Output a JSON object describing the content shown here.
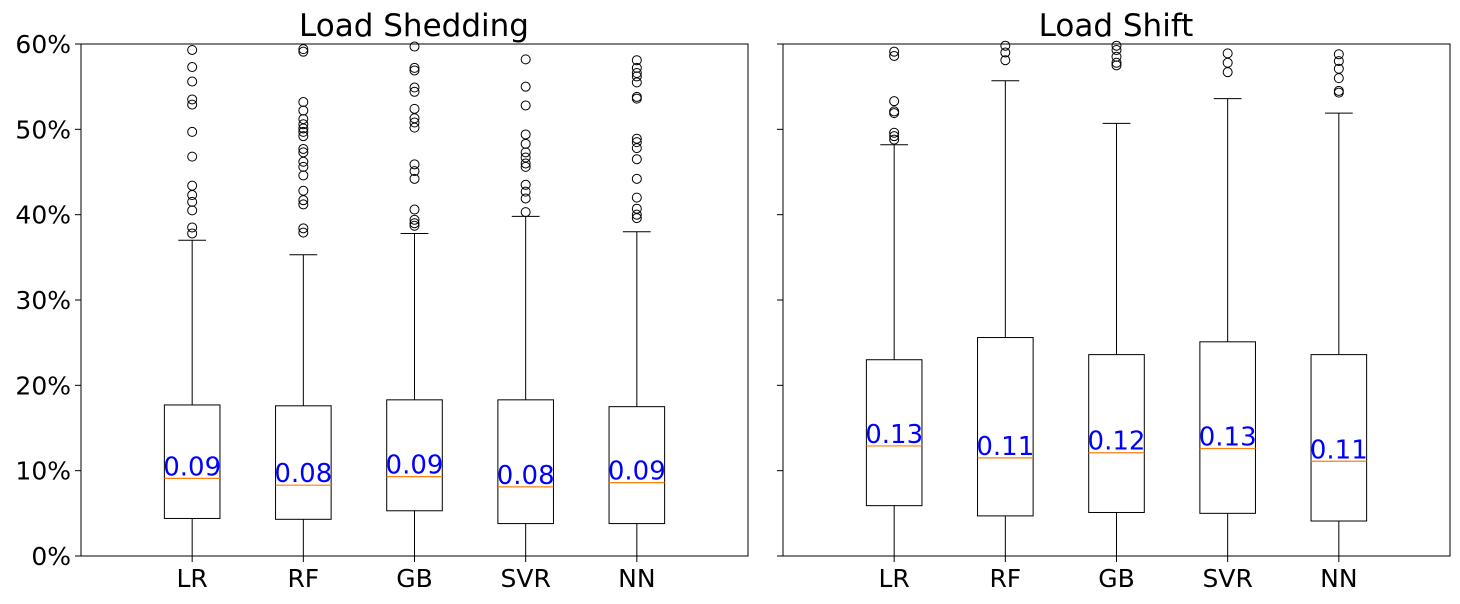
{
  "chart_data": [
    {
      "type": "box",
      "title": "Load Shedding",
      "ylim": [
        0,
        60
      ],
      "yticks": [
        0,
        10,
        20,
        30,
        40,
        50,
        60
      ],
      "ytick_labels": [
        "0%",
        "10%",
        "20%",
        "30%",
        "40%",
        "50%",
        "60%"
      ],
      "categories": [
        "LR",
        "RF",
        "GB",
        "SVR",
        "NN"
      ],
      "boxes": [
        {
          "name": "LR",
          "whisker_low": 0,
          "q1": 4.4,
          "median": 9.1,
          "q3": 17.7,
          "whisker_high": 37.0,
          "median_label": "0.09",
          "outliers": [
            37.8,
            38.5,
            40.5,
            41.5,
            42.3,
            43.4,
            46.8,
            49.7,
            52.9,
            53.5,
            55.6,
            57.3,
            59.3
          ]
        },
        {
          "name": "RF",
          "whisker_low": 0,
          "q1": 4.3,
          "median": 8.3,
          "q3": 17.6,
          "whisker_high": 35.3,
          "median_label": "0.08",
          "outliers": [
            37.9,
            38.4,
            41.2,
            41.7,
            42.8,
            44.6,
            45.6,
            46.2,
            47.3,
            47.7,
            49.2,
            49.7,
            50.1,
            50.6,
            51.2,
            52.2,
            53.2,
            59.1,
            59.4
          ]
        },
        {
          "name": "GB",
          "whisker_low": 0,
          "q1": 5.3,
          "median": 9.3,
          "q3": 18.3,
          "whisker_high": 37.8,
          "median_label": "0.09",
          "outliers": [
            38.7,
            39.0,
            39.4,
            40.6,
            44.2,
            45.1,
            45.9,
            50.2,
            50.8,
            51.3,
            52.4,
            54.4,
            54.9,
            56.9,
            57.2,
            59.7
          ]
        },
        {
          "name": "SVR",
          "whisker_low": 0,
          "q1": 3.8,
          "median": 8.1,
          "q3": 18.3,
          "whisker_high": 39.8,
          "median_label": "0.08",
          "outliers": [
            40.3,
            41.9,
            42.7,
            43.5,
            45.6,
            46.0,
            46.7,
            47.3,
            48.3,
            49.4,
            52.8,
            55.0,
            58.2
          ]
        },
        {
          "name": "NN",
          "whisker_low": 0,
          "q1": 3.8,
          "median": 8.6,
          "q3": 17.5,
          "whisker_high": 38.0,
          "median_label": "0.09",
          "outliers": [
            39.6,
            40.0,
            40.7,
            42.0,
            44.2,
            46.5,
            47.8,
            48.5,
            48.9,
            53.6,
            53.8,
            55.5,
            56.2,
            56.6,
            57.2,
            58.1
          ]
        }
      ]
    },
    {
      "type": "box",
      "title": "Load Shift",
      "ylim": [
        0,
        60
      ],
      "yticks": [
        0,
        10,
        20,
        30,
        40,
        50,
        60
      ],
      "ytick_labels": [],
      "categories": [
        "LR",
        "RF",
        "GB",
        "SVR",
        "NN"
      ],
      "boxes": [
        {
          "name": "LR",
          "whisker_low": 0,
          "q1": 5.9,
          "median": 12.9,
          "q3": 23.0,
          "whisker_high": 48.2,
          "median_label": "0.13",
          "outliers": [
            48.8,
            49.2,
            49.6,
            51.9,
            52.1,
            53.3,
            58.6,
            59.1
          ]
        },
        {
          "name": "RF",
          "whisker_low": 0,
          "q1": 4.7,
          "median": 11.5,
          "q3": 25.6,
          "whisker_high": 55.7,
          "median_label": "0.11",
          "outliers": [
            58.1,
            59.0,
            59.8
          ]
        },
        {
          "name": "GB",
          "whisker_low": 0,
          "q1": 5.1,
          "median": 12.1,
          "q3": 23.6,
          "whisker_high": 50.7,
          "median_label": "0.12",
          "outliers": [
            57.5,
            57.8,
            58.5,
            59.3,
            59.8
          ]
        },
        {
          "name": "SVR",
          "whisker_low": 0,
          "q1": 5.0,
          "median": 12.6,
          "q3": 25.1,
          "whisker_high": 53.6,
          "median_label": "0.13",
          "outliers": [
            56.7,
            57.8,
            58.9
          ]
        },
        {
          "name": "NN",
          "whisker_low": 0,
          "q1": 4.1,
          "median": 11.1,
          "q3": 23.6,
          "whisker_high": 51.9,
          "median_label": "0.11",
          "outliers": [
            54.3,
            54.5,
            56.0,
            57.1,
            58.0,
            58.8
          ]
        }
      ]
    }
  ],
  "colors": {
    "median_line": "#ff7f0e",
    "median_label": "#0000ff",
    "box": "#000000",
    "background": "#ffffff"
  }
}
